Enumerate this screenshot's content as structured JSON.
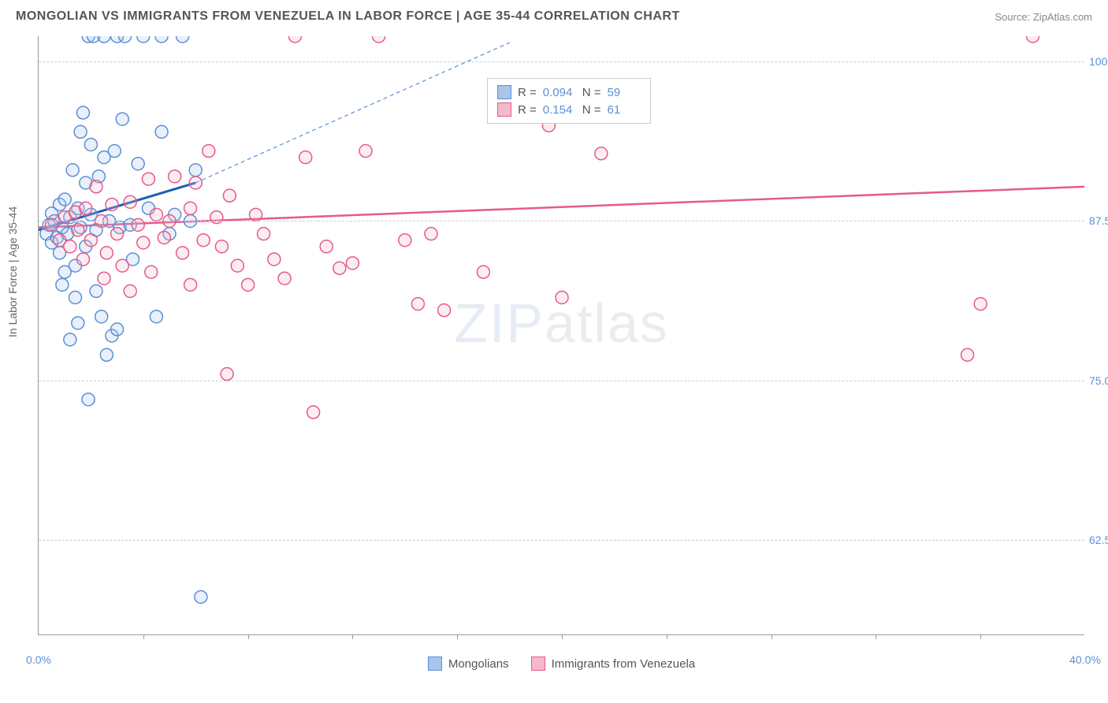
{
  "header": {
    "title": "MONGOLIAN VS IMMIGRANTS FROM VENEZUELA IN LABOR FORCE | AGE 35-44 CORRELATION CHART",
    "source": "Source: ZipAtlas.com"
  },
  "chart": {
    "type": "scatter",
    "y_axis_label": "In Labor Force | Age 35-44",
    "xlim": [
      0,
      40
    ],
    "ylim": [
      55,
      102
    ],
    "x_ticks": [
      0,
      40
    ],
    "x_tick_labels": [
      "0.0%",
      "40.0%"
    ],
    "x_minor_ticks": [
      4,
      8,
      12,
      16,
      20,
      24,
      28,
      32,
      36
    ],
    "y_ticks": [
      62.5,
      75,
      87.5,
      100
    ],
    "y_tick_labels": [
      "62.5%",
      "75.0%",
      "87.5%",
      "100.0%"
    ],
    "background_color": "#ffffff",
    "grid_color": "#cccccc",
    "axis_color": "#999999",
    "tick_label_color": "#5b8fd6",
    "marker_radius": 8,
    "marker_stroke_width": 1.5,
    "marker_fill_opacity": 0.25,
    "series": [
      {
        "name": "Mongolians",
        "color_fill": "#a8c5ec",
        "color_stroke": "#5b8fd6",
        "r_value": "0.094",
        "n_value": "59",
        "trend_line": {
          "x1": 0,
          "y1": 86.8,
          "x2": 6,
          "y2": 90.5,
          "color": "#1a5fb4",
          "width": 3
        },
        "trend_extrapolate": {
          "x1": 6,
          "y1": 90.5,
          "x2": 18,
          "y2": 101.5,
          "color": "#5b8fd6",
          "dash": "5,4",
          "width": 1.2
        },
        "points": [
          [
            0.3,
            86.5
          ],
          [
            0.4,
            87.2
          ],
          [
            0.5,
            85.8
          ],
          [
            0.5,
            88.1
          ],
          [
            0.6,
            87.5
          ],
          [
            0.7,
            86.2
          ],
          [
            0.8,
            85.0
          ],
          [
            0.8,
            88.8
          ],
          [
            0.9,
            87.0
          ],
          [
            1.0,
            83.5
          ],
          [
            1.0,
            89.2
          ],
          [
            1.1,
            86.5
          ],
          [
            1.2,
            78.2
          ],
          [
            1.2,
            87.8
          ],
          [
            1.3,
            91.5
          ],
          [
            1.4,
            84.0
          ],
          [
            1.5,
            79.5
          ],
          [
            1.5,
            88.5
          ],
          [
            1.6,
            87.0
          ],
          [
            1.7,
            96.0
          ],
          [
            1.8,
            85.5
          ],
          [
            1.8,
            90.5
          ],
          [
            1.9,
            102.0
          ],
          [
            1.9,
            73.5
          ],
          [
            2.0,
            88.0
          ],
          [
            2.1,
            102.0
          ],
          [
            2.2,
            82.0
          ],
          [
            2.2,
            86.8
          ],
          [
            2.3,
            91.0
          ],
          [
            2.4,
            80.0
          ],
          [
            2.5,
            102.0
          ],
          [
            2.5,
            92.5
          ],
          [
            2.6,
            77.0
          ],
          [
            2.7,
            87.5
          ],
          [
            2.8,
            78.5
          ],
          [
            2.9,
            93.0
          ],
          [
            3.0,
            102.0
          ],
          [
            3.0,
            79.0
          ],
          [
            3.1,
            87.0
          ],
          [
            3.2,
            95.5
          ],
          [
            3.3,
            102.0
          ],
          [
            3.5,
            87.2
          ],
          [
            3.6,
            84.5
          ],
          [
            3.8,
            92.0
          ],
          [
            4.0,
            102.0
          ],
          [
            4.2,
            88.5
          ],
          [
            4.5,
            80.0
          ],
          [
            4.7,
            102.0
          ],
          [
            4.7,
            94.5
          ],
          [
            5.0,
            86.5
          ],
          [
            5.2,
            88.0
          ],
          [
            5.5,
            102.0
          ],
          [
            5.8,
            87.5
          ],
          [
            6.0,
            91.5
          ],
          [
            6.2,
            58.0
          ],
          [
            0.9,
            82.5
          ],
          [
            1.4,
            81.5
          ],
          [
            1.6,
            94.5
          ],
          [
            2.0,
            93.5
          ]
        ]
      },
      {
        "name": "Immigrants from Venezuela",
        "color_fill": "#f5b8cc",
        "color_stroke": "#e65a8a",
        "r_value": "0.154",
        "n_value": "61",
        "trend_line": {
          "x1": 0,
          "y1": 87.0,
          "x2": 40,
          "y2": 90.2,
          "color": "#e65a8a",
          "width": 2.5
        },
        "points": [
          [
            0.5,
            87.2
          ],
          [
            0.8,
            86.0
          ],
          [
            1.0,
            87.8
          ],
          [
            1.2,
            85.5
          ],
          [
            1.4,
            88.2
          ],
          [
            1.5,
            86.8
          ],
          [
            1.7,
            84.5
          ],
          [
            1.8,
            88.5
          ],
          [
            2.0,
            86.0
          ],
          [
            2.2,
            90.2
          ],
          [
            2.4,
            87.5
          ],
          [
            2.6,
            85.0
          ],
          [
            2.8,
            88.8
          ],
          [
            3.0,
            86.5
          ],
          [
            3.2,
            84.0
          ],
          [
            3.5,
            89.0
          ],
          [
            3.8,
            87.2
          ],
          [
            4.0,
            85.8
          ],
          [
            4.3,
            83.5
          ],
          [
            4.5,
            88.0
          ],
          [
            4.8,
            86.2
          ],
          [
            5.0,
            87.5
          ],
          [
            5.2,
            91.0
          ],
          [
            5.5,
            85.0
          ],
          [
            5.8,
            88.5
          ],
          [
            6.0,
            90.5
          ],
          [
            6.3,
            86.0
          ],
          [
            6.5,
            93.0
          ],
          [
            6.8,
            87.8
          ],
          [
            7.0,
            85.5
          ],
          [
            7.3,
            89.5
          ],
          [
            7.6,
            84.0
          ],
          [
            8.0,
            82.5
          ],
          [
            8.3,
            88.0
          ],
          [
            8.6,
            86.5
          ],
          [
            9.0,
            84.5
          ],
          [
            9.4,
            83.0
          ],
          [
            9.8,
            102.0
          ],
          [
            10.2,
            92.5
          ],
          [
            10.5,
            72.5
          ],
          [
            11.0,
            85.5
          ],
          [
            11.5,
            83.8
          ],
          [
            12.0,
            84.2
          ],
          [
            12.5,
            93.0
          ],
          [
            13.0,
            102.0
          ],
          [
            14.0,
            86.0
          ],
          [
            14.5,
            81.0
          ],
          [
            15.0,
            86.5
          ],
          [
            15.5,
            80.5
          ],
          [
            17.0,
            83.5
          ],
          [
            19.5,
            95.0
          ],
          [
            20.0,
            81.5
          ],
          [
            21.5,
            92.8
          ],
          [
            35.5,
            77.0
          ],
          [
            36.0,
            81.0
          ],
          [
            38.0,
            102.0
          ],
          [
            5.8,
            82.5
          ],
          [
            7.2,
            75.5
          ],
          [
            3.5,
            82.0
          ],
          [
            4.2,
            90.8
          ],
          [
            2.5,
            83.0
          ]
        ]
      }
    ],
    "legend_bottom": [
      {
        "label": "Mongolians",
        "fill": "#a8c5ec",
        "stroke": "#5b8fd6"
      },
      {
        "label": "Immigrants from Venezuela",
        "fill": "#f5b8cc",
        "stroke": "#e65a8a"
      }
    ],
    "watermark": {
      "part1": "ZIP",
      "part2": "atlas"
    }
  }
}
